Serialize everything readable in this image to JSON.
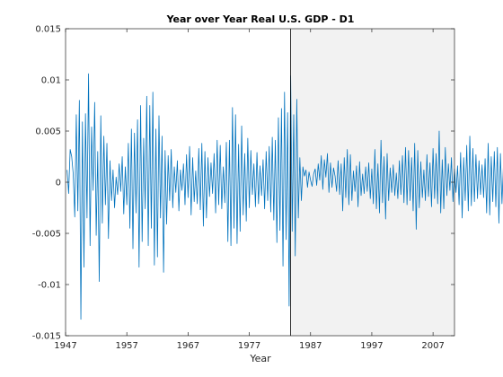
{
  "chart_data": {
    "type": "line",
    "title": "Year over Year Real U.S. GDP - D1",
    "xlabel": "Year",
    "ylabel": "",
    "xlim": [
      1947,
      2010.5
    ],
    "ylim": [
      -0.015,
      0.015
    ],
    "xticks": [
      1947,
      1957,
      1967,
      1977,
      1987,
      1997,
      2007
    ],
    "xtick_labels": [
      "1947",
      "1957",
      "1967",
      "1977",
      "1987",
      "1997",
      "2007"
    ],
    "yticks": [
      -0.015,
      -0.01,
      -0.005,
      0,
      0.005,
      0.01,
      0.015
    ],
    "ytick_labels": [
      "-0.015",
      "-0.01",
      "-0.005",
      "0",
      "0.005",
      "0.01",
      "0.015"
    ],
    "grid": false,
    "legend": "none",
    "shaded_region": {
      "x_start": 1983.75,
      "x_end": 2010.5,
      "color": "#f2f2f2"
    },
    "series_color": "#0072bd",
    "series": [
      {
        "x_start": 1947.25,
        "x_step": 0.25,
        "values": [
          0.0012,
          -0.0011,
          0.0032,
          0.0025,
          0.0008,
          -0.0034,
          0.0066,
          -0.0028,
          0.008,
          -0.0134,
          0.0059,
          -0.0083,
          0.0067,
          -0.0035,
          0.0106,
          -0.0062,
          0.0054,
          -0.0008,
          0.0078,
          -0.0052,
          0.003,
          -0.0097,
          0.0065,
          -0.004,
          0.0045,
          -0.0022,
          0.0038,
          -0.0055,
          0.0021,
          -0.0018,
          0.0012,
          -0.0025,
          0.0005,
          -0.0012,
          0.0018,
          -0.0009,
          0.0025,
          -0.0031,
          0.0015,
          -0.0022,
          0.0038,
          -0.0045,
          0.0052,
          -0.0065,
          0.0048,
          -0.003,
          0.0061,
          -0.0083,
          0.0075,
          -0.0058,
          0.0043,
          -0.0026,
          0.0084,
          -0.0062,
          0.0075,
          -0.0045,
          0.0088,
          -0.0081,
          0.0052,
          -0.0073,
          0.0065,
          -0.0035,
          0.0045,
          -0.0088,
          0.0031,
          -0.0041,
          0.0026,
          -0.0018,
          0.0032,
          -0.0025,
          0.0015,
          -0.001,
          0.0021,
          -0.0028,
          0.0012,
          -0.0008,
          0.0018,
          -0.0022,
          0.0027,
          -0.0015,
          0.0035,
          -0.0032,
          0.0024,
          -0.0019,
          0.0011,
          -0.0021,
          0.0033,
          -0.0027,
          0.0038,
          -0.0043,
          0.003,
          -0.0035,
          0.0024,
          -0.0014,
          0.0019,
          -0.0011,
          0.0028,
          -0.003,
          0.0041,
          -0.0022,
          0.0036,
          -0.0026,
          0.0015,
          -0.002,
          0.0039,
          -0.0058,
          0.0041,
          -0.0062,
          0.0073,
          -0.0045,
          0.0066,
          -0.006,
          0.0037,
          -0.0048,
          0.0055,
          -0.0032,
          0.0028,
          -0.0038,
          0.0043,
          -0.0025,
          0.0031,
          -0.0012,
          0.0018,
          -0.0024,
          0.0029,
          -0.0021,
          0.0016,
          -0.0013,
          0.0022,
          -0.0026,
          0.003,
          -0.0018,
          0.0035,
          -0.0029,
          0.0044,
          -0.0037,
          0.0041,
          -0.0059,
          0.0063,
          -0.0047,
          0.0072,
          -0.0082,
          0.0088,
          -0.0056,
          0.0068,
          -0.0121,
          0.0104,
          -0.0048,
          0.0066,
          -0.0072,
          0.0081,
          -0.0035,
          0.0024,
          -0.0018,
          0.0015,
          0.0006,
          0.0012,
          -0.0005,
          0.001,
          0.0002,
          -0.0004,
          0.0008,
          0.0013,
          -0.0003,
          0.0018,
          0.0002,
          0.0026,
          -0.0007,
          0.0022,
          0.0005,
          0.0028,
          -0.001,
          0.0019,
          -0.0005,
          0.0014,
          0.0006,
          -0.0009,
          0.0021,
          -0.0012,
          0.0018,
          -0.0028,
          0.0024,
          -0.0015,
          0.0032,
          -0.0022,
          0.0027,
          -0.0018,
          0.0011,
          -0.0009,
          0.0016,
          -0.0024,
          0.002,
          -0.0013,
          0.0008,
          -0.0011,
          0.0015,
          -0.0009,
          0.0019,
          -0.0016,
          0.0013,
          -0.0021,
          0.0032,
          -0.0026,
          0.0018,
          -0.003,
          0.0041,
          -0.002,
          0.0025,
          -0.0036,
          0.0028,
          -0.0018,
          0.0014,
          -0.001,
          0.0017,
          -0.0013,
          0.0009,
          -0.0016,
          0.0021,
          -0.0012,
          0.0026,
          -0.002,
          0.0034,
          -0.0022,
          0.0031,
          -0.0018,
          0.0024,
          -0.0028,
          0.0038,
          -0.0046,
          0.0031,
          -0.0025,
          0.002,
          -0.0015,
          0.0012,
          -0.0018,
          0.0027,
          -0.0014,
          0.0019,
          -0.0024,
          0.0033,
          -0.0016,
          0.0028,
          -0.0021,
          0.005,
          -0.003,
          0.0022,
          -0.0026,
          0.0034,
          -0.0013,
          0.0018,
          -0.0008,
          0.0024,
          -0.0019,
          0.0013,
          -0.001,
          0.0016,
          -0.0022,
          0.0029,
          -0.0035,
          0.0024,
          -0.0018,
          0.0036,
          -0.0028,
          0.0045,
          -0.0023,
          0.0033,
          -0.0019,
          0.0027,
          -0.0016,
          0.0021,
          -0.0012,
          0.0017,
          -0.0015,
          0.0023,
          -0.003,
          0.0038,
          -0.0032,
          0.0025,
          -0.0019,
          0.003,
          -0.0024,
          0.0034,
          -0.004,
          0.0028,
          -0.0021,
          0.0018,
          -0.0014,
          0.0022,
          -0.0017,
          0.0013
        ]
      }
    ]
  }
}
